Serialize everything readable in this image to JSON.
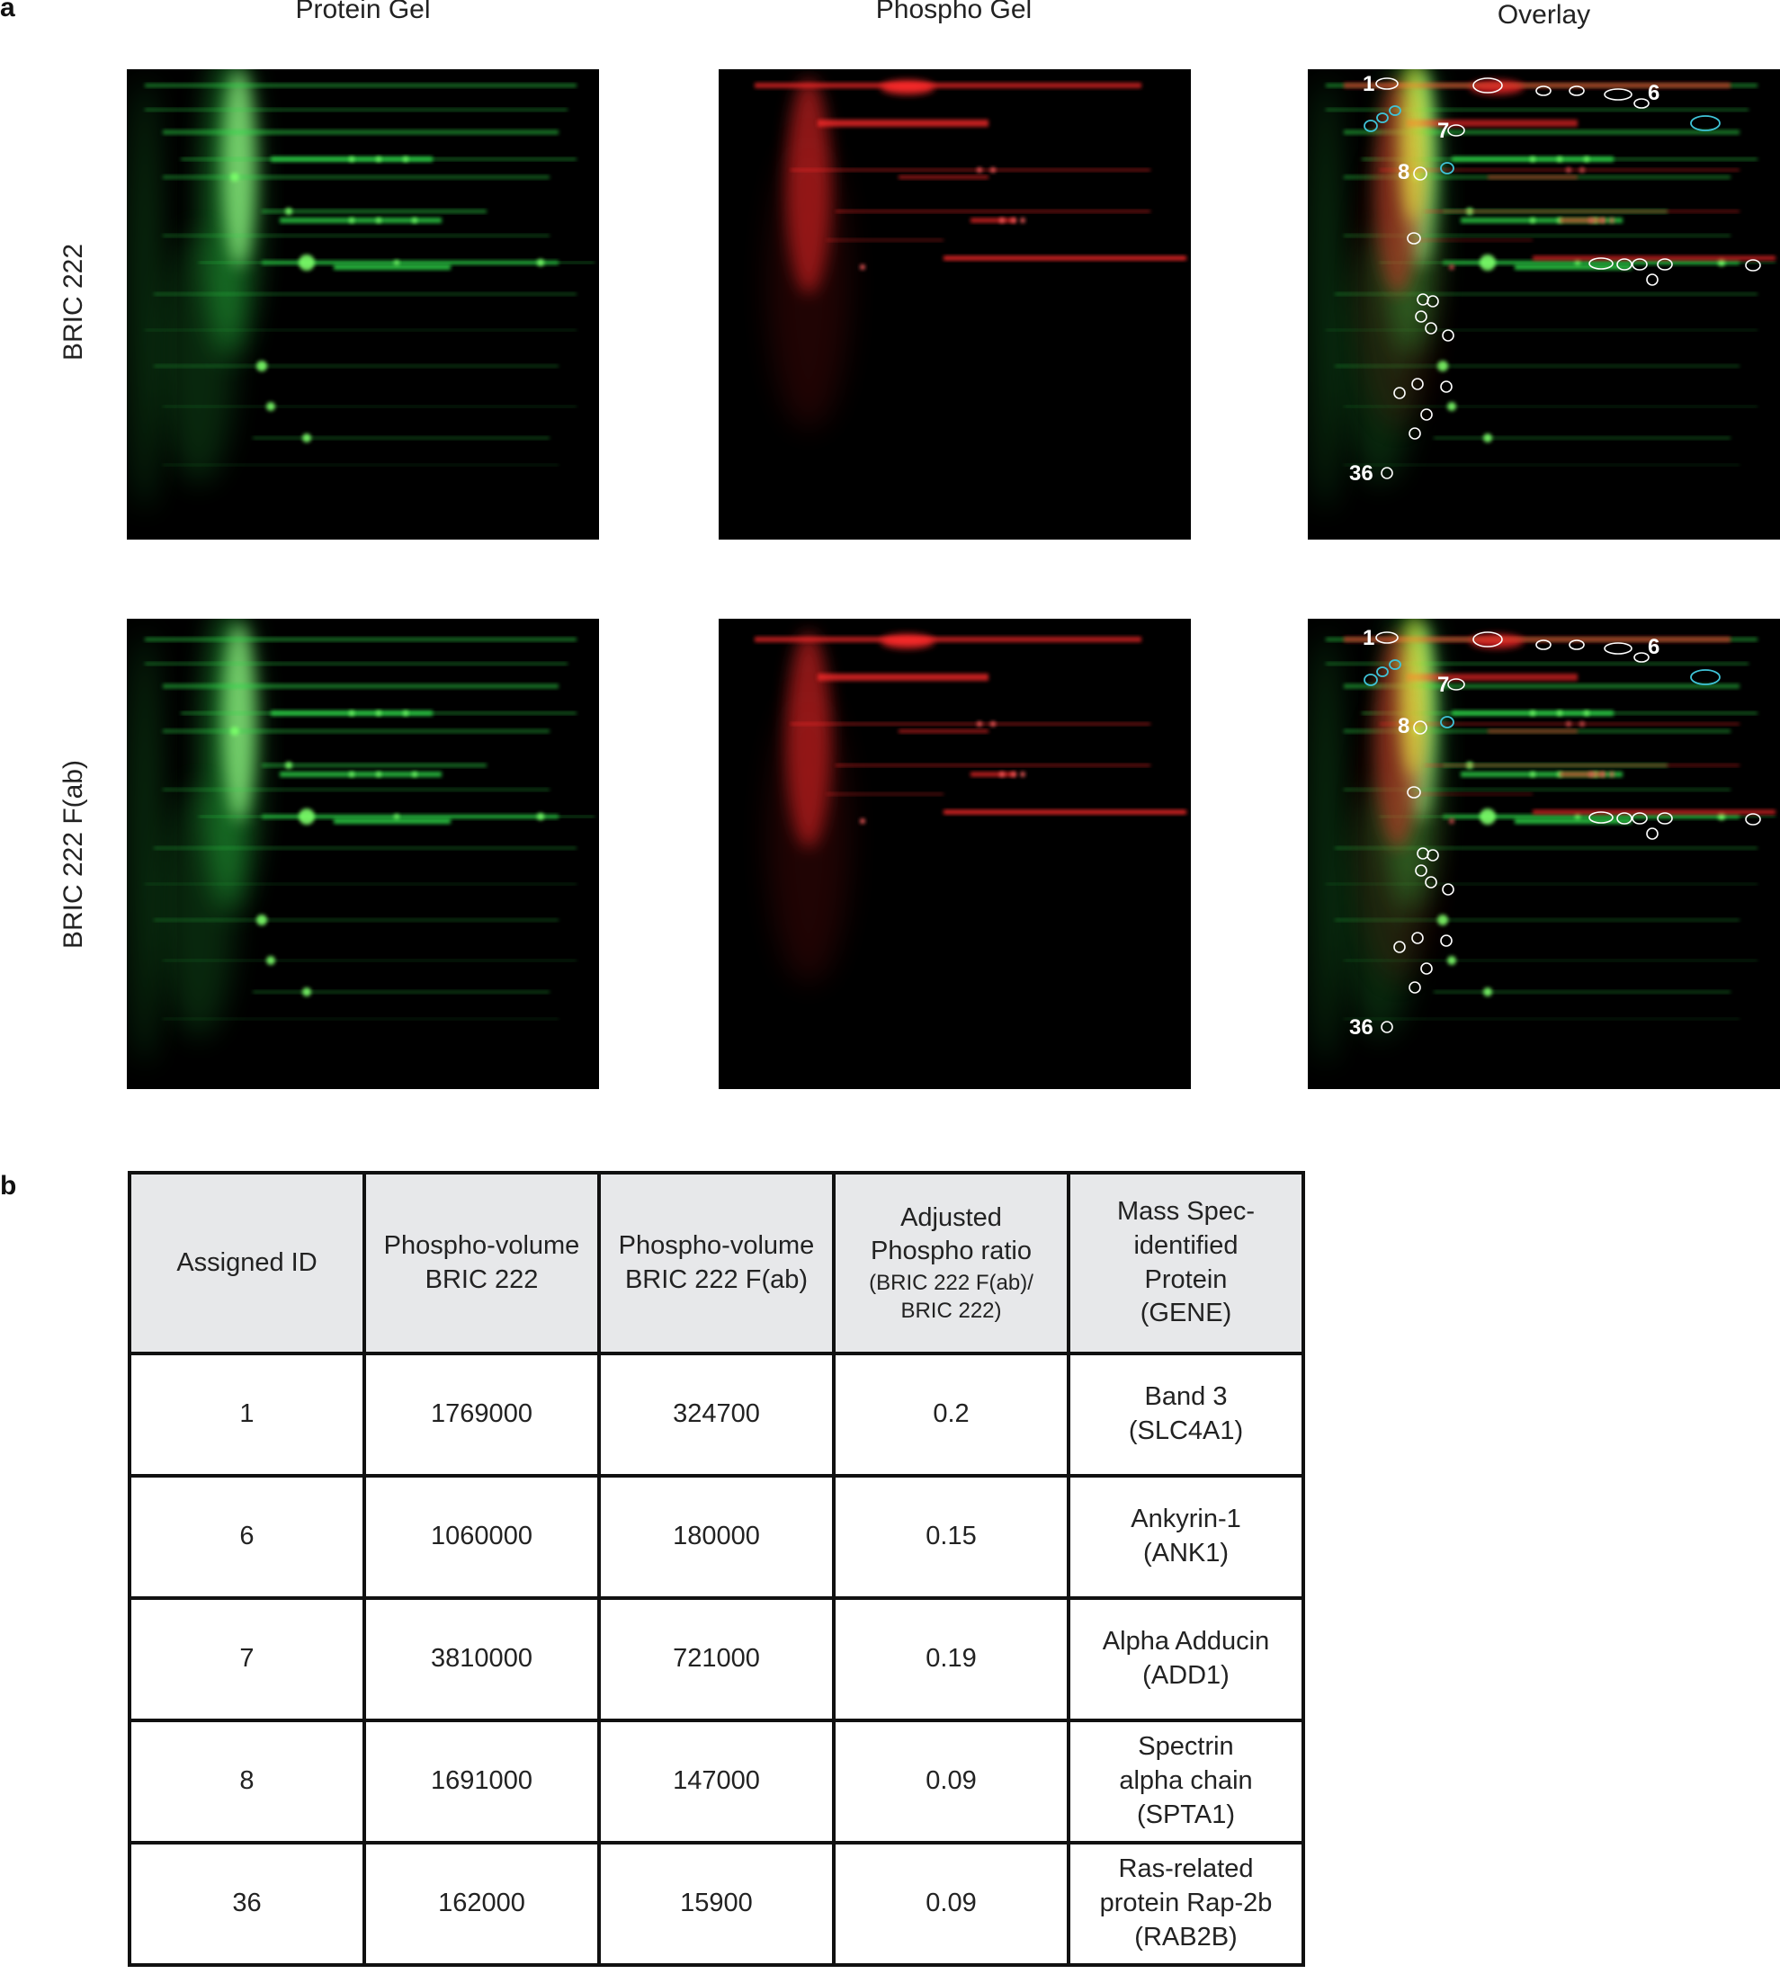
{
  "panel_a": {
    "letter": "a",
    "columns": [
      "Protein Gel",
      "Phospho Gel",
      "Overlay"
    ],
    "rows": [
      "BRIC 222",
      "BRIC 222 F(ab)"
    ],
    "overlay_spot_labels": [
      "1",
      "6",
      "7",
      "8",
      "36"
    ]
  },
  "panel_b": {
    "letter": "b",
    "headers": {
      "assigned_id": "Assigned ID",
      "vol1_line1": "Phospho-volume",
      "vol1_line2": "BRIC 222",
      "vol2_line1": "Phospho-volume",
      "vol2_line2": "BRIC 222 F(ab)",
      "ratio_line1": "Adjusted",
      "ratio_line2": "Phospho ratio",
      "ratio_line3": "(BRIC 222 F(ab)/",
      "ratio_line4": "BRIC 222)",
      "protein_line1": "Mass Spec-",
      "protein_line2": "identified",
      "protein_line3": "Protein",
      "protein_line4": "(GENE)"
    },
    "rows": [
      {
        "id": "1",
        "vol1": "1769000",
        "vol2": "324700",
        "ratio": "0.2",
        "protein": [
          "Band 3",
          "(SLC4A1)"
        ]
      },
      {
        "id": "6",
        "vol1": "1060000",
        "vol2": "180000",
        "ratio": "0.15",
        "protein": [
          "Ankyrin-1",
          "(ANK1)"
        ]
      },
      {
        "id": "7",
        "vol1": "3810000",
        "vol2": "721000",
        "ratio": "0.19",
        "protein": [
          "Alpha Adducin",
          "(ADD1)"
        ]
      },
      {
        "id": "8",
        "vol1": "1691000",
        "vol2": "147000",
        "ratio": "0.09",
        "protein": [
          "Spectrin",
          "alpha chain",
          "(SPTA1)"
        ]
      },
      {
        "id": "36",
        "vol1": "162000",
        "vol2": "15900",
        "ratio": "0.09",
        "protein": [
          "Ras-related",
          "protein Rap-2b",
          "(RAB2B)"
        ]
      }
    ]
  },
  "colors": {
    "protein_stain": "#2fd84a",
    "phospho_stain": "#ff2a2a",
    "overlay_yellow": "#f2f230",
    "circle_white": "#ffffff",
    "circle_cyan": "#3fc4d8",
    "header_bg": "#e7e8ea"
  }
}
